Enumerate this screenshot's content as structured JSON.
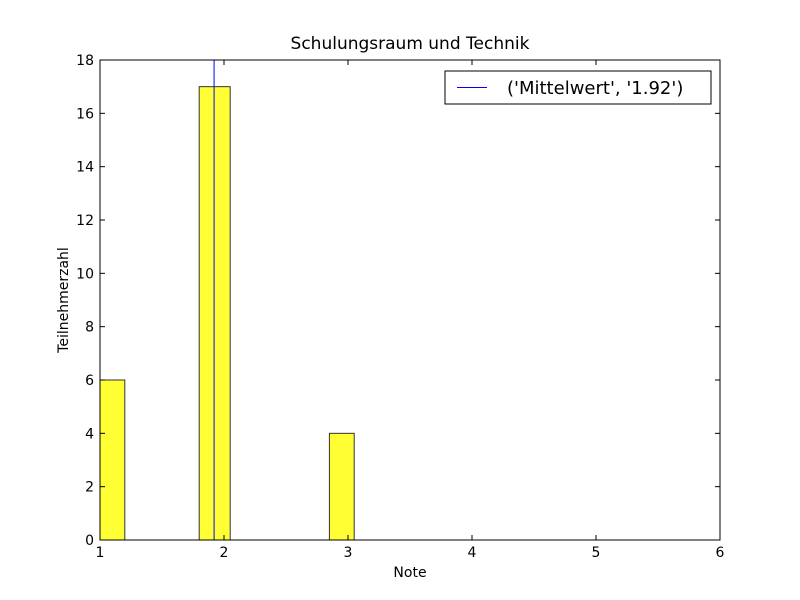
{
  "chart_data": {
    "type": "bar",
    "title": "Schulungsraum und Technik",
    "xlabel": "Note",
    "ylabel": "Teilnehmerzahl",
    "xlim": [
      1,
      6
    ],
    "ylim": [
      0,
      18
    ],
    "x_ticks": [
      "1",
      "2",
      "3",
      "4",
      "5",
      "6"
    ],
    "y_ticks": [
      "0",
      "2",
      "4",
      "6",
      "8",
      "10",
      "12",
      "14",
      "16",
      "18"
    ],
    "bars": [
      {
        "x_start": 1.0,
        "x_end": 1.2,
        "value": 6
      },
      {
        "x_start": 1.8,
        "x_end": 2.05,
        "value": 17
      },
      {
        "x_start": 2.85,
        "x_end": 3.05,
        "value": 4
      }
    ],
    "bar_color": "#ffff33",
    "bar_edge_color": "#333333",
    "mean_line": {
      "x": 1.92,
      "color": "#0000ff"
    },
    "legend": {
      "label": "('Mittelwert', '1.92')",
      "placement": "top-right"
    },
    "grid": false
  }
}
